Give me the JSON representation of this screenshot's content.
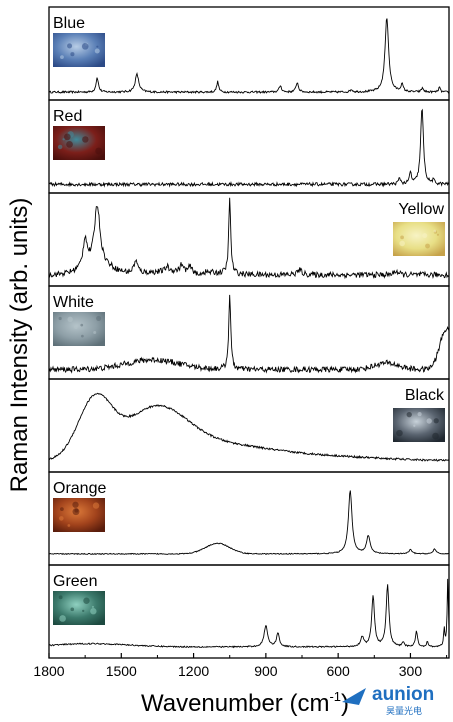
{
  "chart_data": {
    "type": "line",
    "ylabel": "Raman Intensity (arb. units)",
    "xlabel": "Wavenumber (cm",
    "xlabel_sup": "-1",
    "xlabel_close": ")",
    "xlim": [
      1800,
      140
    ],
    "xticks": [
      1800,
      1500,
      1200,
      900,
      600,
      300
    ],
    "yticks_shown": false,
    "panels": [
      {
        "name": "Blue",
        "label_pos": "top-left",
        "swatch": {
          "base": "#5a7fb6",
          "accent": "#b8cde6",
          "dark": "#2c4a86"
        },
        "baseline": 0.06,
        "slope": 0.0,
        "bumps": [],
        "peaks": [
          {
            "x": 1600,
            "h": 0.18,
            "w": 6
          },
          {
            "x": 1435,
            "h": 0.22,
            "w": 9
          },
          {
            "x": 1100,
            "h": 0.13,
            "w": 5
          },
          {
            "x": 840,
            "h": 0.08,
            "w": 6
          },
          {
            "x": 770,
            "h": 0.12,
            "w": 6
          },
          {
            "x": 545,
            "h": 0.03,
            "w": 6
          },
          {
            "x": 398,
            "h": 0.92,
            "w": 9
          },
          {
            "x": 335,
            "h": 0.09,
            "w": 6
          },
          {
            "x": 250,
            "h": 0.05,
            "w": 5
          },
          {
            "x": 180,
            "h": 0.06,
            "w": 4
          }
        ],
        "noise": 0.012
      },
      {
        "name": "Red",
        "label_pos": "top-left",
        "swatch": {
          "base": "#7c1f1a",
          "accent": "#3f8a9a",
          "dark": "#4a0f0c"
        },
        "baseline": 0.07,
        "slope": 0.0,
        "bumps": [],
        "peaks": [
          {
            "x": 345,
            "h": 0.07,
            "w": 6
          },
          {
            "x": 300,
            "h": 0.14,
            "w": 5
          },
          {
            "x": 252,
            "h": 0.94,
            "w": 7
          },
          {
            "x": 205,
            "h": 0.04,
            "w": 6
          }
        ],
        "noise": 0.02
      },
      {
        "name": "Yellow",
        "label_pos": "top-right",
        "swatch": {
          "base": "#e8df86",
          "accent": "#f7f3c4",
          "dark": "#c6a24a"
        },
        "baseline": 0.1,
        "slope": 0.0,
        "bumps": [
          {
            "x": 1600,
            "h": 0.12,
            "w": 60
          },
          {
            "x": 1250,
            "h": 0.05,
            "w": 120
          }
        ],
        "peaks": [
          {
            "x": 1650,
            "h": 0.35,
            "w": 10
          },
          {
            "x": 1600,
            "h": 0.74,
            "w": 14
          },
          {
            "x": 1440,
            "h": 0.15,
            "w": 10
          },
          {
            "x": 1310,
            "h": 0.06,
            "w": 8
          },
          {
            "x": 1250,
            "h": 0.08,
            "w": 7
          },
          {
            "x": 1215,
            "h": 0.06,
            "w": 6
          },
          {
            "x": 1180,
            "h": -0.06,
            "w": 8
          },
          {
            "x": 1050,
            "h": 0.92,
            "w": 5
          },
          {
            "x": 760,
            "h": 0.06,
            "w": 12
          },
          {
            "x": 360,
            "h": 0.05,
            "w": 10
          }
        ],
        "noise": 0.035
      },
      {
        "name": "White",
        "label_pos": "top-left",
        "swatch": {
          "base": "#8d9ea6",
          "accent": "#b4c3c9",
          "dark": "#5e7078"
        },
        "baseline": 0.08,
        "slope": 0.0,
        "bumps": [
          {
            "x": 1370,
            "h": 0.12,
            "w": 110
          },
          {
            "x": 400,
            "h": 0.08,
            "w": 50
          },
          {
            "x": 150,
            "h": 0.5,
            "w": 28
          }
        ],
        "peaks": [
          {
            "x": 1050,
            "h": 0.93,
            "w": 5
          }
        ],
        "noise": 0.035
      },
      {
        "name": "Black",
        "label_pos": "top-right",
        "swatch": {
          "base": "#5a6470",
          "accent": "#c8d2da",
          "dark": "#202830"
        },
        "baseline": 0.1,
        "slope": 0.0,
        "bumps": [
          {
            "x": 1610,
            "h": 0.72,
            "w": 70
          },
          {
            "x": 1360,
            "h": 0.6,
            "w": 130
          },
          {
            "x": 1100,
            "h": 0.18,
            "w": 200
          },
          {
            "x": 700,
            "h": 0.06,
            "w": 250
          }
        ],
        "peaks": [],
        "noise": 0.012
      },
      {
        "name": "Orange",
        "label_pos": "top-left",
        "swatch": {
          "base": "#a2431c",
          "accent": "#dc7a3a",
          "dark": "#5a1d0c"
        },
        "baseline": 0.1,
        "slope": 0.0,
        "bumps": [
          {
            "x": 1100,
            "h": 0.13,
            "w": 50
          }
        ],
        "peaks": [
          {
            "x": 550,
            "h": 0.78,
            "w": 9
          },
          {
            "x": 475,
            "h": 0.22,
            "w": 9
          },
          {
            "x": 300,
            "h": 0.05,
            "w": 8
          },
          {
            "x": 200,
            "h": 0.06,
            "w": 7
          }
        ],
        "noise": 0.006
      },
      {
        "name": "Green",
        "label_pos": "top-left",
        "swatch": {
          "base": "#3c7a6c",
          "accent": "#8fd0c0",
          "dark": "#1d4a40"
        },
        "baseline": 0.1,
        "slope": 0.0,
        "bumps": [
          {
            "x": 1620,
            "h": 0.04,
            "w": 150
          }
        ],
        "peaks": [
          {
            "x": 900,
            "h": 0.26,
            "w": 9
          },
          {
            "x": 850,
            "h": 0.17,
            "w": 7
          },
          {
            "x": 500,
            "h": 0.12,
            "w": 8
          },
          {
            "x": 455,
            "h": 0.62,
            "w": 7
          },
          {
            "x": 395,
            "h": 0.76,
            "w": 7
          },
          {
            "x": 330,
            "h": 0.05,
            "w": 5
          },
          {
            "x": 275,
            "h": 0.2,
            "w": 5
          },
          {
            "x": 230,
            "h": 0.06,
            "w": 4
          },
          {
            "x": 160,
            "h": 0.22,
            "w": 3
          },
          {
            "x": 145,
            "h": 0.85,
            "w": 3
          }
        ],
        "noise": 0.008
      }
    ]
  },
  "watermark": {
    "text": "aunion",
    "subtext": "昊量光电",
    "color": "#1f6fc0"
  }
}
